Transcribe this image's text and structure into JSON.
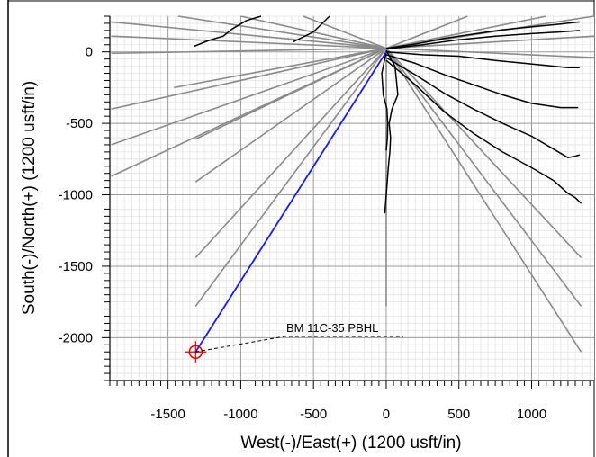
{
  "chart_data": {
    "type": "line",
    "title": "",
    "xlabel": "West(-)/East(+) (1200 usft/in)",
    "ylabel": "South(-)/North(+) (1200 usft/in)",
    "xlim": [
      -1900,
      1430
    ],
    "ylim": [
      -2300,
      250
    ],
    "x_ticks": [
      -1500,
      -1000,
      -500,
      0,
      500,
      1000
    ],
    "y_ticks": [
      0,
      -500,
      -1000,
      -1500,
      -2000
    ],
    "grid": true,
    "colors": {
      "plan_line": "#1a1ae6",
      "offset_wells": "#000000",
      "reference_lines": "#8a8a8a",
      "target_marker": "#e00000",
      "grid_major": "#9a9a9a",
      "grid_minor": "#e2e2e2"
    },
    "annotations": [
      {
        "text": "BM 11C-35 PBHL",
        "x": -1310,
        "y": -2100
      }
    ],
    "target": {
      "name": "BM 11C-35 PBHL",
      "x": -1310,
      "y": -2100
    },
    "planned_wellpath": {
      "x": [
        0,
        -1310
      ],
      "y": [
        0,
        -2100
      ]
    },
    "reference_lines": [
      {
        "x": [
          0,
          -1890
        ],
        "y": [
          25,
          210
        ]
      },
      {
        "x": [
          0,
          -1890
        ],
        "y": [
          25,
          110
        ]
      },
      {
        "x": [
          0,
          -1890
        ],
        "y": [
          25,
          -10
        ]
      },
      {
        "x": [
          0,
          -1890
        ],
        "y": [
          25,
          -400
        ]
      },
      {
        "x": [
          0,
          -1890
        ],
        "y": [
          25,
          -650
        ]
      },
      {
        "x": [
          0,
          -1890
        ],
        "y": [
          25,
          -870
        ]
      },
      {
        "x": [
          0,
          -1460
        ],
        "y": [
          25,
          -250
        ]
      },
      {
        "x": [
          0,
          -1310
        ],
        "y": [
          25,
          -610
        ]
      },
      {
        "x": [
          0,
          -1310
        ],
        "y": [
          25,
          -910
        ]
      },
      {
        "x": [
          0,
          -1310
        ],
        "y": [
          25,
          -1440
        ]
      },
      {
        "x": [
          0,
          -1310
        ],
        "y": [
          25,
          -1780
        ]
      },
      {
        "x": [
          0,
          -1430
        ],
        "y": [
          25,
          250
        ]
      },
      {
        "x": [
          0,
          -1000
        ],
        "y": [
          25,
          250
        ]
      },
      {
        "x": [
          0,
          -570
        ],
        "y": [
          25,
          250
        ]
      },
      {
        "x": [
          0,
          560
        ],
        "y": [
          25,
          250
        ]
      },
      {
        "x": [
          0,
          1100
        ],
        "y": [
          25,
          250
        ]
      },
      {
        "x": [
          0,
          1430
        ],
        "y": [
          25,
          250
        ]
      },
      {
        "x": [
          0,
          1430
        ],
        "y": [
          25,
          110
        ]
      },
      {
        "x": [
          0,
          1430
        ],
        "y": [
          25,
          -40
        ]
      },
      {
        "x": [
          0,
          1340
        ],
        "y": [
          25,
          -1440
        ]
      },
      {
        "x": [
          0,
          1340
        ],
        "y": [
          25,
          -1780
        ]
      },
      {
        "x": [
          0,
          1340
        ],
        "y": [
          25,
          -2100
        ]
      },
      {
        "x": [
          0,
          0
        ],
        "y": [
          25,
          -1780
        ]
      }
    ],
    "offset_wells": [
      {
        "x": [
          -640,
          -500,
          -390
        ],
        "y": [
          70,
          140,
          250
        ]
      },
      {
        "x": [
          -1320,
          -1220,
          -1120,
          -1060,
          -960,
          -860
        ],
        "y": [
          40,
          80,
          110,
          160,
          220,
          250
        ]
      },
      {
        "x": [
          0,
          200,
          400,
          600,
          800,
          1000,
          1200,
          1330
        ],
        "y": [
          25,
          55,
          95,
          125,
          155,
          175,
          195,
          210
        ]
      },
      {
        "x": [
          0,
          250,
          500,
          750,
          1000,
          1200,
          1330
        ],
        "y": [
          20,
          50,
          85,
          110,
          128,
          140,
          150
        ]
      },
      {
        "x": [
          0,
          250,
          500,
          750,
          950,
          1100,
          1250,
          1330
        ],
        "y": [
          0,
          -20,
          -30,
          -60,
          -80,
          -95,
          -110,
          -110
        ]
      },
      {
        "x": [
          0,
          200,
          400,
          600,
          800,
          1000,
          1200,
          1320
        ],
        "y": [
          -20,
          -80,
          -160,
          -230,
          -300,
          -360,
          -390,
          -390
        ]
      },
      {
        "x": [
          0,
          200,
          400,
          600,
          800,
          1000,
          1150,
          1250,
          1300,
          1330
        ],
        "y": [
          -40,
          -160,
          -290,
          -400,
          -500,
          -590,
          -680,
          -740,
          -730,
          -720
        ]
      },
      {
        "x": [
          0,
          200,
          400,
          600,
          800,
          1000,
          1150,
          1250,
          1300,
          1340
        ],
        "y": [
          -60,
          -230,
          -420,
          -570,
          -700,
          -810,
          -900,
          -990,
          -1020,
          -1060
        ]
      },
      {
        "x": [
          0,
          60,
          80,
          40,
          20,
          30,
          25,
          15,
          0,
          -10
        ],
        "y": [
          10,
          -100,
          -300,
          -400,
          -500,
          -600,
          -700,
          -800,
          -1000,
          -1130
        ]
      },
      {
        "x": [
          0,
          -30,
          -20,
          5,
          10,
          8,
          0
        ],
        "y": [
          0,
          -150,
          -300,
          -400,
          -500,
          -600,
          -690
        ]
      }
    ]
  }
}
